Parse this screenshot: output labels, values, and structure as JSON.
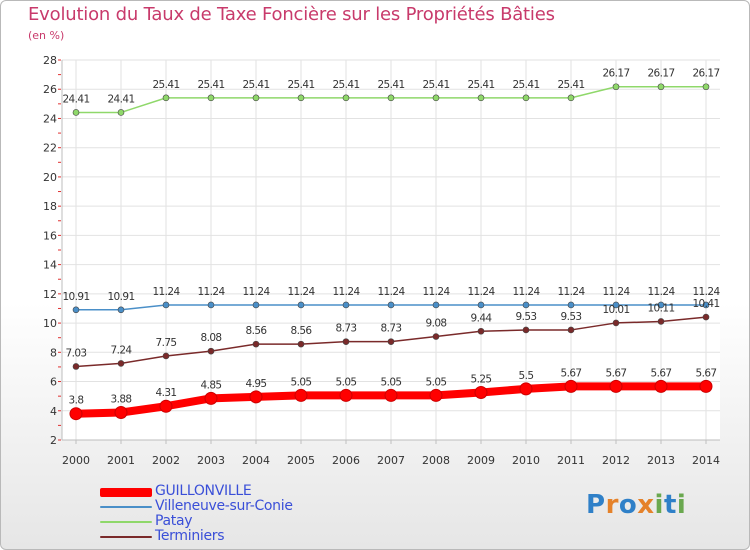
{
  "chart_data": {
    "type": "line",
    "title": "Evolution du Taux de Taxe Foncière sur les Propriétés Bâties",
    "subtitle": "(en %)",
    "xlabel": "",
    "ylabel": "",
    "ylim": [
      2,
      28
    ],
    "yticks": [
      "2",
      "4",
      "6",
      "8",
      "10",
      "12",
      "14",
      "16",
      "18",
      "20",
      "22",
      "24",
      "26",
      "28"
    ],
    "categories": [
      "2000",
      "2001",
      "2002",
      "2003",
      "2004",
      "2005",
      "2006",
      "2007",
      "2008",
      "2009",
      "2010",
      "2011",
      "2012",
      "2013",
      "2014"
    ],
    "grid": true,
    "series": [
      {
        "name": "GUILLONVILLE",
        "color": "#ff0000",
        "values": [
          3.8,
          3.88,
          4.31,
          4.85,
          4.95,
          5.05,
          5.05,
          5.05,
          5.05,
          5.25,
          5.5,
          5.67,
          5.67,
          5.67,
          5.67
        ],
        "labels": [
          "3.8",
          "3.88",
          "4.31",
          "4.85",
          "4.95",
          "5.05",
          "5.05",
          "5.05",
          "5.05",
          "5.25",
          "5.5",
          "5.67",
          "5.67",
          "5.67",
          "5.67"
        ]
      },
      {
        "name": "Villeneuve-sur-Conie",
        "color": "#4a8fc8",
        "values": [
          10.91,
          10.91,
          11.24,
          11.24,
          11.24,
          11.24,
          11.24,
          11.24,
          11.24,
          11.24,
          11.24,
          11.24,
          11.24,
          11.24,
          11.24
        ],
        "labels": [
          "10.91",
          "10.91",
          "11.24",
          "11.24",
          "11.24",
          "11.24",
          "11.24",
          "11.24",
          "11.24",
          "11.24",
          "11.24",
          "11.24",
          "11.24",
          "11.24",
          "11.24"
        ]
      },
      {
        "name": "Patay",
        "color": "#8fd86a",
        "values": [
          24.41,
          24.41,
          25.41,
          25.41,
          25.41,
          25.41,
          25.41,
          25.41,
          25.41,
          25.41,
          25.41,
          25.41,
          26.17,
          26.17,
          26.17
        ],
        "labels": [
          "24.41",
          "24.41",
          "25.41",
          "25.41",
          "25.41",
          "25.41",
          "25.41",
          "25.41",
          "25.41",
          "25.41",
          "25.41",
          "25.41",
          "26.17",
          "26.17",
          "26.17"
        ]
      },
      {
        "name": "Terminiers",
        "color": "#7a2a2a",
        "values": [
          7.03,
          7.24,
          7.75,
          8.08,
          8.56,
          8.56,
          8.73,
          8.73,
          9.08,
          9.44,
          9.53,
          9.53,
          10.01,
          10.11,
          10.41
        ],
        "labels": [
          "7.03",
          "7.24",
          "7.75",
          "8.08",
          "8.56",
          "8.56",
          "8.73",
          "8.73",
          "9.08",
          "9.44",
          "9.53",
          "9.53",
          "10.01",
          "10.11",
          "10.41"
        ]
      }
    ],
    "legend_position": "bottom-left"
  },
  "brand": {
    "logo_letters": [
      "P",
      "r",
      "o",
      "x",
      "i",
      "t",
      "i"
    ]
  }
}
